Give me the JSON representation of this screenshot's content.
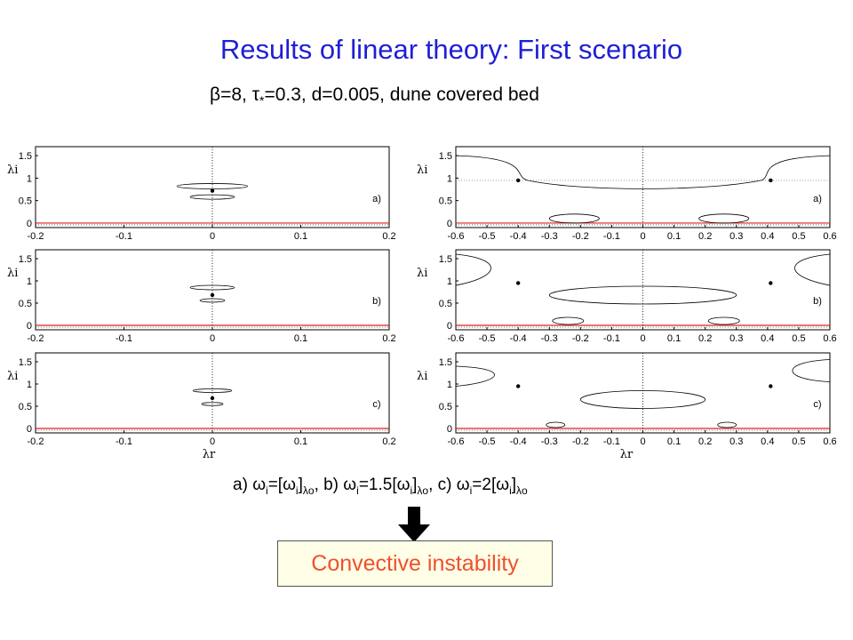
{
  "slide": {
    "title": "Results of linear theory: First scenario",
    "subtitle": {
      "beta": "β",
      "beta_val": "=8, ",
      "tau": "τ",
      "tau_sub": "*",
      "rest": "=0.3, d=0.005, dune covered bed"
    },
    "caption": {
      "a": "a) ",
      "omega": "ω",
      "i": "i",
      "lambda_o": "λo",
      "eq1": "=[",
      "close": "]",
      "sep_b": ", b) ",
      "eq15": "=1.5[",
      "sep_c": ", c) ",
      "eq2": "=2["
    },
    "result": "Convective instability"
  },
  "chart_data": [
    {
      "type": "line",
      "panel": "a) left",
      "xlabel": "λr",
      "ylabel": "λi",
      "xlim": [
        -0.2,
        0.2
      ],
      "ylim": [
        -0.1,
        1.7
      ],
      "xticks": [
        "-0.2",
        "-0.1",
        "0",
        "0.1",
        "0.2"
      ],
      "yticks": [
        "0",
        "0.5",
        "1",
        "1.5"
      ],
      "annotation": "a)",
      "saddle_point": [
        0,
        0.72
      ]
    },
    {
      "type": "line",
      "panel": "b) left",
      "xlabel": "λr",
      "ylabel": "λi",
      "xlim": [
        -0.2,
        0.2
      ],
      "ylim": [
        -0.1,
        1.7
      ],
      "xticks": [
        "-0.2",
        "-0.1",
        "0",
        "0.1",
        "0.2"
      ],
      "yticks": [
        "0",
        "0.5",
        "1",
        "1.5"
      ],
      "annotation": "b)",
      "saddle_point": [
        0,
        0.68
      ]
    },
    {
      "type": "line",
      "panel": "c) left",
      "xlabel": "λr",
      "ylabel": "λi",
      "xlim": [
        -0.2,
        0.2
      ],
      "ylim": [
        -0.1,
        1.7
      ],
      "xticks": [
        "-0.2",
        "-0.1",
        "0",
        "0.1",
        "0.2"
      ],
      "yticks": [
        "0",
        "0.5",
        "1",
        "1.5"
      ],
      "annotation": "c)",
      "saddle_point": [
        0,
        0.68
      ]
    },
    {
      "type": "line",
      "panel": "a) right",
      "xlabel": "λr",
      "ylabel": "λi",
      "xlim": [
        -0.6,
        0.6
      ],
      "ylim": [
        -0.1,
        1.7
      ],
      "xticks": [
        "-0.6",
        "-0.5",
        "-0.4",
        "-0.3",
        "-0.2",
        "-0.1",
        "0",
        "0.1",
        "0.2",
        "0.3",
        "0.4",
        "0.5",
        "0.6"
      ],
      "yticks": [
        "0",
        "0.5",
        "1",
        "1.5"
      ],
      "annotation": "a)",
      "saddle_points": [
        [
          -0.4,
          0.95
        ],
        [
          0.41,
          0.95
        ]
      ]
    },
    {
      "type": "line",
      "panel": "b) right",
      "xlabel": "λr",
      "ylabel": "λi",
      "xlim": [
        -0.6,
        0.6
      ],
      "ylim": [
        -0.1,
        1.7
      ],
      "xticks": [
        "-0.6",
        "-0.5",
        "-0.4",
        "-0.3",
        "-0.2",
        "-0.1",
        "0",
        "0.1",
        "0.2",
        "0.3",
        "0.4",
        "0.5",
        "0.6"
      ],
      "yticks": [
        "0",
        "0.5",
        "1",
        "1.5"
      ],
      "annotation": "b)",
      "saddle_points": [
        [
          -0.4,
          0.95
        ],
        [
          0.41,
          0.95
        ]
      ]
    },
    {
      "type": "line",
      "panel": "c) right",
      "xlabel": "λr",
      "ylabel": "λi",
      "xlim": [
        -0.6,
        0.6
      ],
      "ylim": [
        -0.1,
        1.7
      ],
      "xticks": [
        "-0.6",
        "-0.5",
        "-0.4",
        "-0.3",
        "-0.2",
        "-0.1",
        "0",
        "0.1",
        "0.2",
        "0.3",
        "0.4",
        "0.5",
        "0.6"
      ],
      "yticks": [
        "0",
        "0.5",
        "1",
        "1.5"
      ],
      "annotation": "c)",
      "saddle_points": [
        [
          -0.4,
          0.95
        ],
        [
          0.41,
          0.95
        ]
      ]
    }
  ],
  "colors": {
    "title": "#1f1fd6",
    "result": "#f0502c",
    "zero_line": "#e02020",
    "box_bg": "#ffffe8"
  }
}
